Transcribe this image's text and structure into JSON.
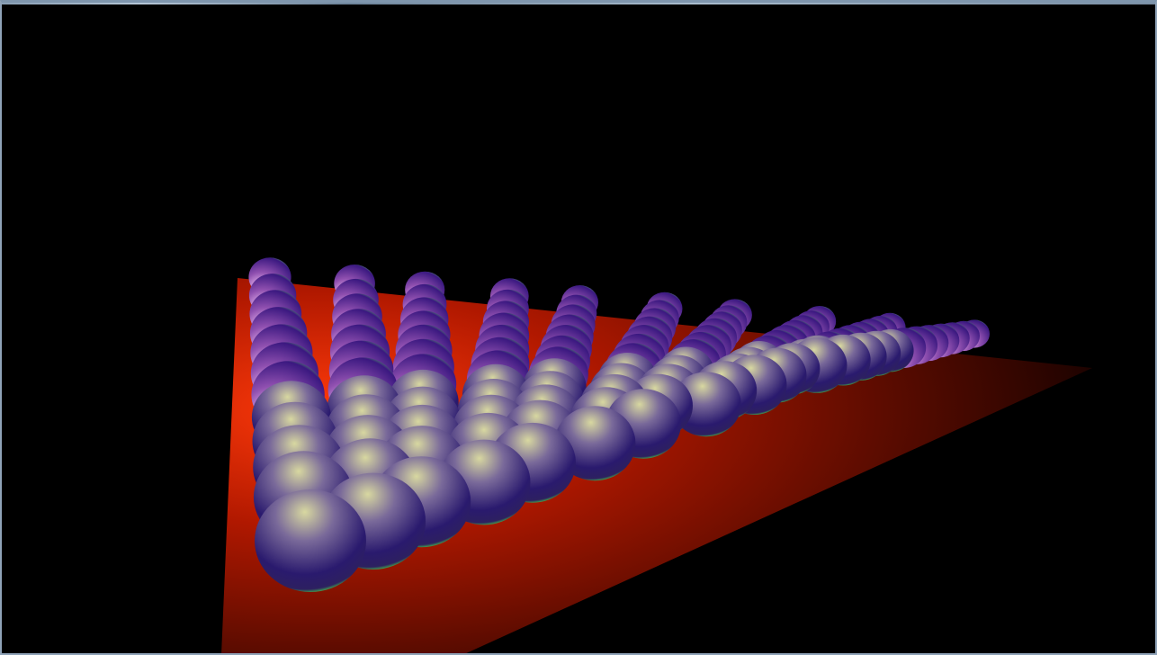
{
  "window": {
    "frame_color": "#8fa3b8"
  },
  "scene": {
    "background_color": "#000000",
    "floor": {
      "highlight_color": "#ff3a0a",
      "mid_color": "#b01800",
      "far_color": "#1a0200"
    },
    "sphere": {
      "base_color": "#2a1a6e",
      "specular_color": "#d8d8a0",
      "rim_color": "#50ff40",
      "highlight_color": "#ffd0ff"
    },
    "grid": {
      "rows": 12,
      "cols": 10
    }
  }
}
